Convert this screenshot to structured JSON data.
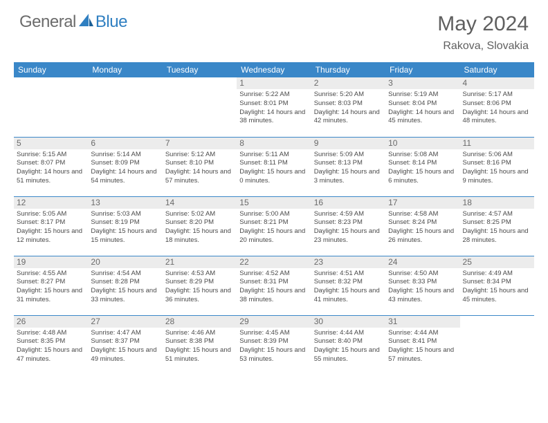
{
  "logo": {
    "general": "General",
    "blue": "Blue"
  },
  "title": "May 2024",
  "location": "Rakova, Slovakia",
  "styling": {
    "header_bg": "#3a87c8",
    "header_text": "#ffffff",
    "daynum_bg": "#ececec",
    "daynum_color": "#6a6a6a",
    "cell_text": "#4a4a4a",
    "row_border": "#3a87c8",
    "title_color": "#5f5f5f",
    "logo_gray": "#6b6b6b",
    "logo_blue": "#2f7fc1",
    "page_bg": "#ffffff",
    "header_fontsize": 12,
    "cell_fontsize": 9.5,
    "title_fontsize": 30,
    "location_fontsize": 16
  },
  "dayHeaders": [
    "Sunday",
    "Monday",
    "Tuesday",
    "Wednesday",
    "Thursday",
    "Friday",
    "Saturday"
  ],
  "weeks": [
    [
      null,
      null,
      null,
      {
        "n": "1",
        "sr": "5:22 AM",
        "ss": "8:01 PM",
        "dl": "14 hours and 38 minutes."
      },
      {
        "n": "2",
        "sr": "5:20 AM",
        "ss": "8:03 PM",
        "dl": "14 hours and 42 minutes."
      },
      {
        "n": "3",
        "sr": "5:19 AM",
        "ss": "8:04 PM",
        "dl": "14 hours and 45 minutes."
      },
      {
        "n": "4",
        "sr": "5:17 AM",
        "ss": "8:06 PM",
        "dl": "14 hours and 48 minutes."
      }
    ],
    [
      {
        "n": "5",
        "sr": "5:15 AM",
        "ss": "8:07 PM",
        "dl": "14 hours and 51 minutes."
      },
      {
        "n": "6",
        "sr": "5:14 AM",
        "ss": "8:09 PM",
        "dl": "14 hours and 54 minutes."
      },
      {
        "n": "7",
        "sr": "5:12 AM",
        "ss": "8:10 PM",
        "dl": "14 hours and 57 minutes."
      },
      {
        "n": "8",
        "sr": "5:11 AM",
        "ss": "8:11 PM",
        "dl": "15 hours and 0 minutes."
      },
      {
        "n": "9",
        "sr": "5:09 AM",
        "ss": "8:13 PM",
        "dl": "15 hours and 3 minutes."
      },
      {
        "n": "10",
        "sr": "5:08 AM",
        "ss": "8:14 PM",
        "dl": "15 hours and 6 minutes."
      },
      {
        "n": "11",
        "sr": "5:06 AM",
        "ss": "8:16 PM",
        "dl": "15 hours and 9 minutes."
      }
    ],
    [
      {
        "n": "12",
        "sr": "5:05 AM",
        "ss": "8:17 PM",
        "dl": "15 hours and 12 minutes."
      },
      {
        "n": "13",
        "sr": "5:03 AM",
        "ss": "8:19 PM",
        "dl": "15 hours and 15 minutes."
      },
      {
        "n": "14",
        "sr": "5:02 AM",
        "ss": "8:20 PM",
        "dl": "15 hours and 18 minutes."
      },
      {
        "n": "15",
        "sr": "5:00 AM",
        "ss": "8:21 PM",
        "dl": "15 hours and 20 minutes."
      },
      {
        "n": "16",
        "sr": "4:59 AM",
        "ss": "8:23 PM",
        "dl": "15 hours and 23 minutes."
      },
      {
        "n": "17",
        "sr": "4:58 AM",
        "ss": "8:24 PM",
        "dl": "15 hours and 26 minutes."
      },
      {
        "n": "18",
        "sr": "4:57 AM",
        "ss": "8:25 PM",
        "dl": "15 hours and 28 minutes."
      }
    ],
    [
      {
        "n": "19",
        "sr": "4:55 AM",
        "ss": "8:27 PM",
        "dl": "15 hours and 31 minutes."
      },
      {
        "n": "20",
        "sr": "4:54 AM",
        "ss": "8:28 PM",
        "dl": "15 hours and 33 minutes."
      },
      {
        "n": "21",
        "sr": "4:53 AM",
        "ss": "8:29 PM",
        "dl": "15 hours and 36 minutes."
      },
      {
        "n": "22",
        "sr": "4:52 AM",
        "ss": "8:31 PM",
        "dl": "15 hours and 38 minutes."
      },
      {
        "n": "23",
        "sr": "4:51 AM",
        "ss": "8:32 PM",
        "dl": "15 hours and 41 minutes."
      },
      {
        "n": "24",
        "sr": "4:50 AM",
        "ss": "8:33 PM",
        "dl": "15 hours and 43 minutes."
      },
      {
        "n": "25",
        "sr": "4:49 AM",
        "ss": "8:34 PM",
        "dl": "15 hours and 45 minutes."
      }
    ],
    [
      {
        "n": "26",
        "sr": "4:48 AM",
        "ss": "8:35 PM",
        "dl": "15 hours and 47 minutes."
      },
      {
        "n": "27",
        "sr": "4:47 AM",
        "ss": "8:37 PM",
        "dl": "15 hours and 49 minutes."
      },
      {
        "n": "28",
        "sr": "4:46 AM",
        "ss": "8:38 PM",
        "dl": "15 hours and 51 minutes."
      },
      {
        "n": "29",
        "sr": "4:45 AM",
        "ss": "8:39 PM",
        "dl": "15 hours and 53 minutes."
      },
      {
        "n": "30",
        "sr": "4:44 AM",
        "ss": "8:40 PM",
        "dl": "15 hours and 55 minutes."
      },
      {
        "n": "31",
        "sr": "4:44 AM",
        "ss": "8:41 PM",
        "dl": "15 hours and 57 minutes."
      },
      null
    ]
  ],
  "labels": {
    "sunrise": "Sunrise:",
    "sunset": "Sunset:",
    "daylight": "Daylight:"
  }
}
